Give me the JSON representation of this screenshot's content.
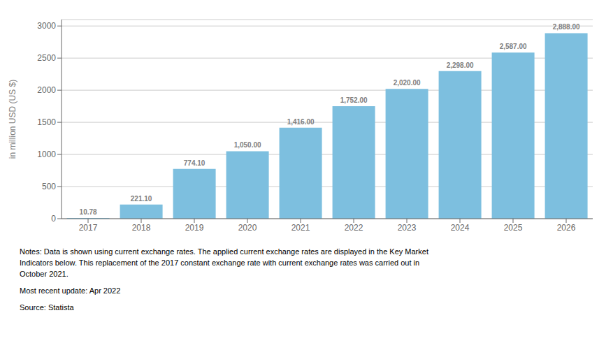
{
  "chart_data": {
    "type": "bar",
    "categories": [
      "2017",
      "2018",
      "2019",
      "2020",
      "2021",
      "2022",
      "2023",
      "2024",
      "2025",
      "2026"
    ],
    "values": [
      10.78,
      221.1,
      774.1,
      1050.0,
      1416.0,
      1752.0,
      2020.0,
      2298.0,
      2587.0,
      2888.0
    ],
    "value_labels": [
      "10.78",
      "221.10",
      "774.10",
      "1,050.00",
      "1,416.00",
      "1,752.00",
      "2,020.00",
      "2,298.00",
      "2,587.00",
      "2,888.00"
    ],
    "data_labels": true,
    "color": "#7dbfdf",
    "ylabel": "in million USD (US $)",
    "ylim": [
      0,
      3100
    ],
    "yticks": [
      0,
      500,
      1000,
      1500,
      2000,
      2500,
      3000
    ],
    "grid": true,
    "annotations": [
      "Notes: Data is shown using current exchange rates. The applied current exchange rates are displayed in the Key Market\nIndicators below. This replacement of the 2017 constant exchange rate with current exchange rates was carried out in\nOctober 2021.",
      "Most recent update: Apr 2022",
      "Source: Statista"
    ]
  }
}
